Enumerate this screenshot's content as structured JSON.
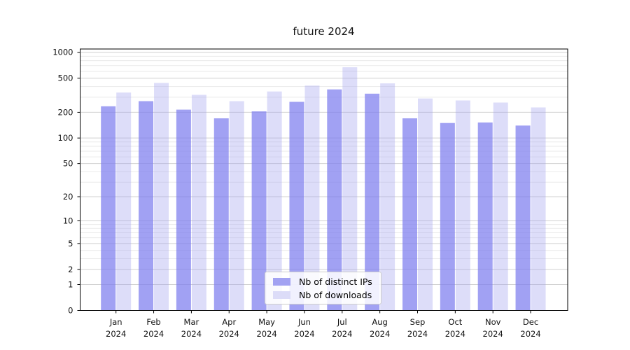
{
  "chart_data": {
    "type": "bar",
    "title": "future 2024",
    "categories": [
      {
        "month": "Jan",
        "year": "2024"
      },
      {
        "month": "Feb",
        "year": "2024"
      },
      {
        "month": "Mar",
        "year": "2024"
      },
      {
        "month": "Apr",
        "year": "2024"
      },
      {
        "month": "May",
        "year": "2024"
      },
      {
        "month": "Jun",
        "year": "2024"
      },
      {
        "month": "Jul",
        "year": "2024"
      },
      {
        "month": "Aug",
        "year": "2024"
      },
      {
        "month": "Sep",
        "year": "2024"
      },
      {
        "month": "Oct",
        "year": "2024"
      },
      {
        "month": "Nov",
        "year": "2024"
      },
      {
        "month": "Dec",
        "year": "2024"
      }
    ],
    "series": [
      {
        "name": "Nb of distinct IPs",
        "color": "#a2a2f2",
        "fill": "rgba(125,125,238,0.72)",
        "values": [
          235,
          270,
          215,
          170,
          205,
          265,
          370,
          330,
          170,
          150,
          152,
          140
        ]
      },
      {
        "name": "Nb of downloads",
        "color": "#dcdcf8",
        "fill": "rgba(160,160,238,0.36)",
        "values": [
          340,
          440,
          320,
          270,
          350,
          410,
          670,
          435,
          290,
          275,
          260,
          228
        ]
      }
    ],
    "yscale": "log1p",
    "y_ticks": [
      0,
      1,
      2,
      5,
      10,
      20,
      50,
      100,
      200,
      500,
      1000
    ],
    "y_minor_ticks": [
      3,
      4,
      6,
      7,
      8,
      9,
      30,
      40,
      60,
      70,
      80,
      90,
      300,
      400,
      600,
      700,
      800,
      900
    ],
    "ylim": [
      0,
      1090
    ],
    "grid": true,
    "legend_position": "lower center",
    "colors": {
      "axis": "#000000",
      "tick_label": "#111111",
      "grid_major": "#d0d0d0",
      "grid_minor": "#eaeaea"
    }
  }
}
